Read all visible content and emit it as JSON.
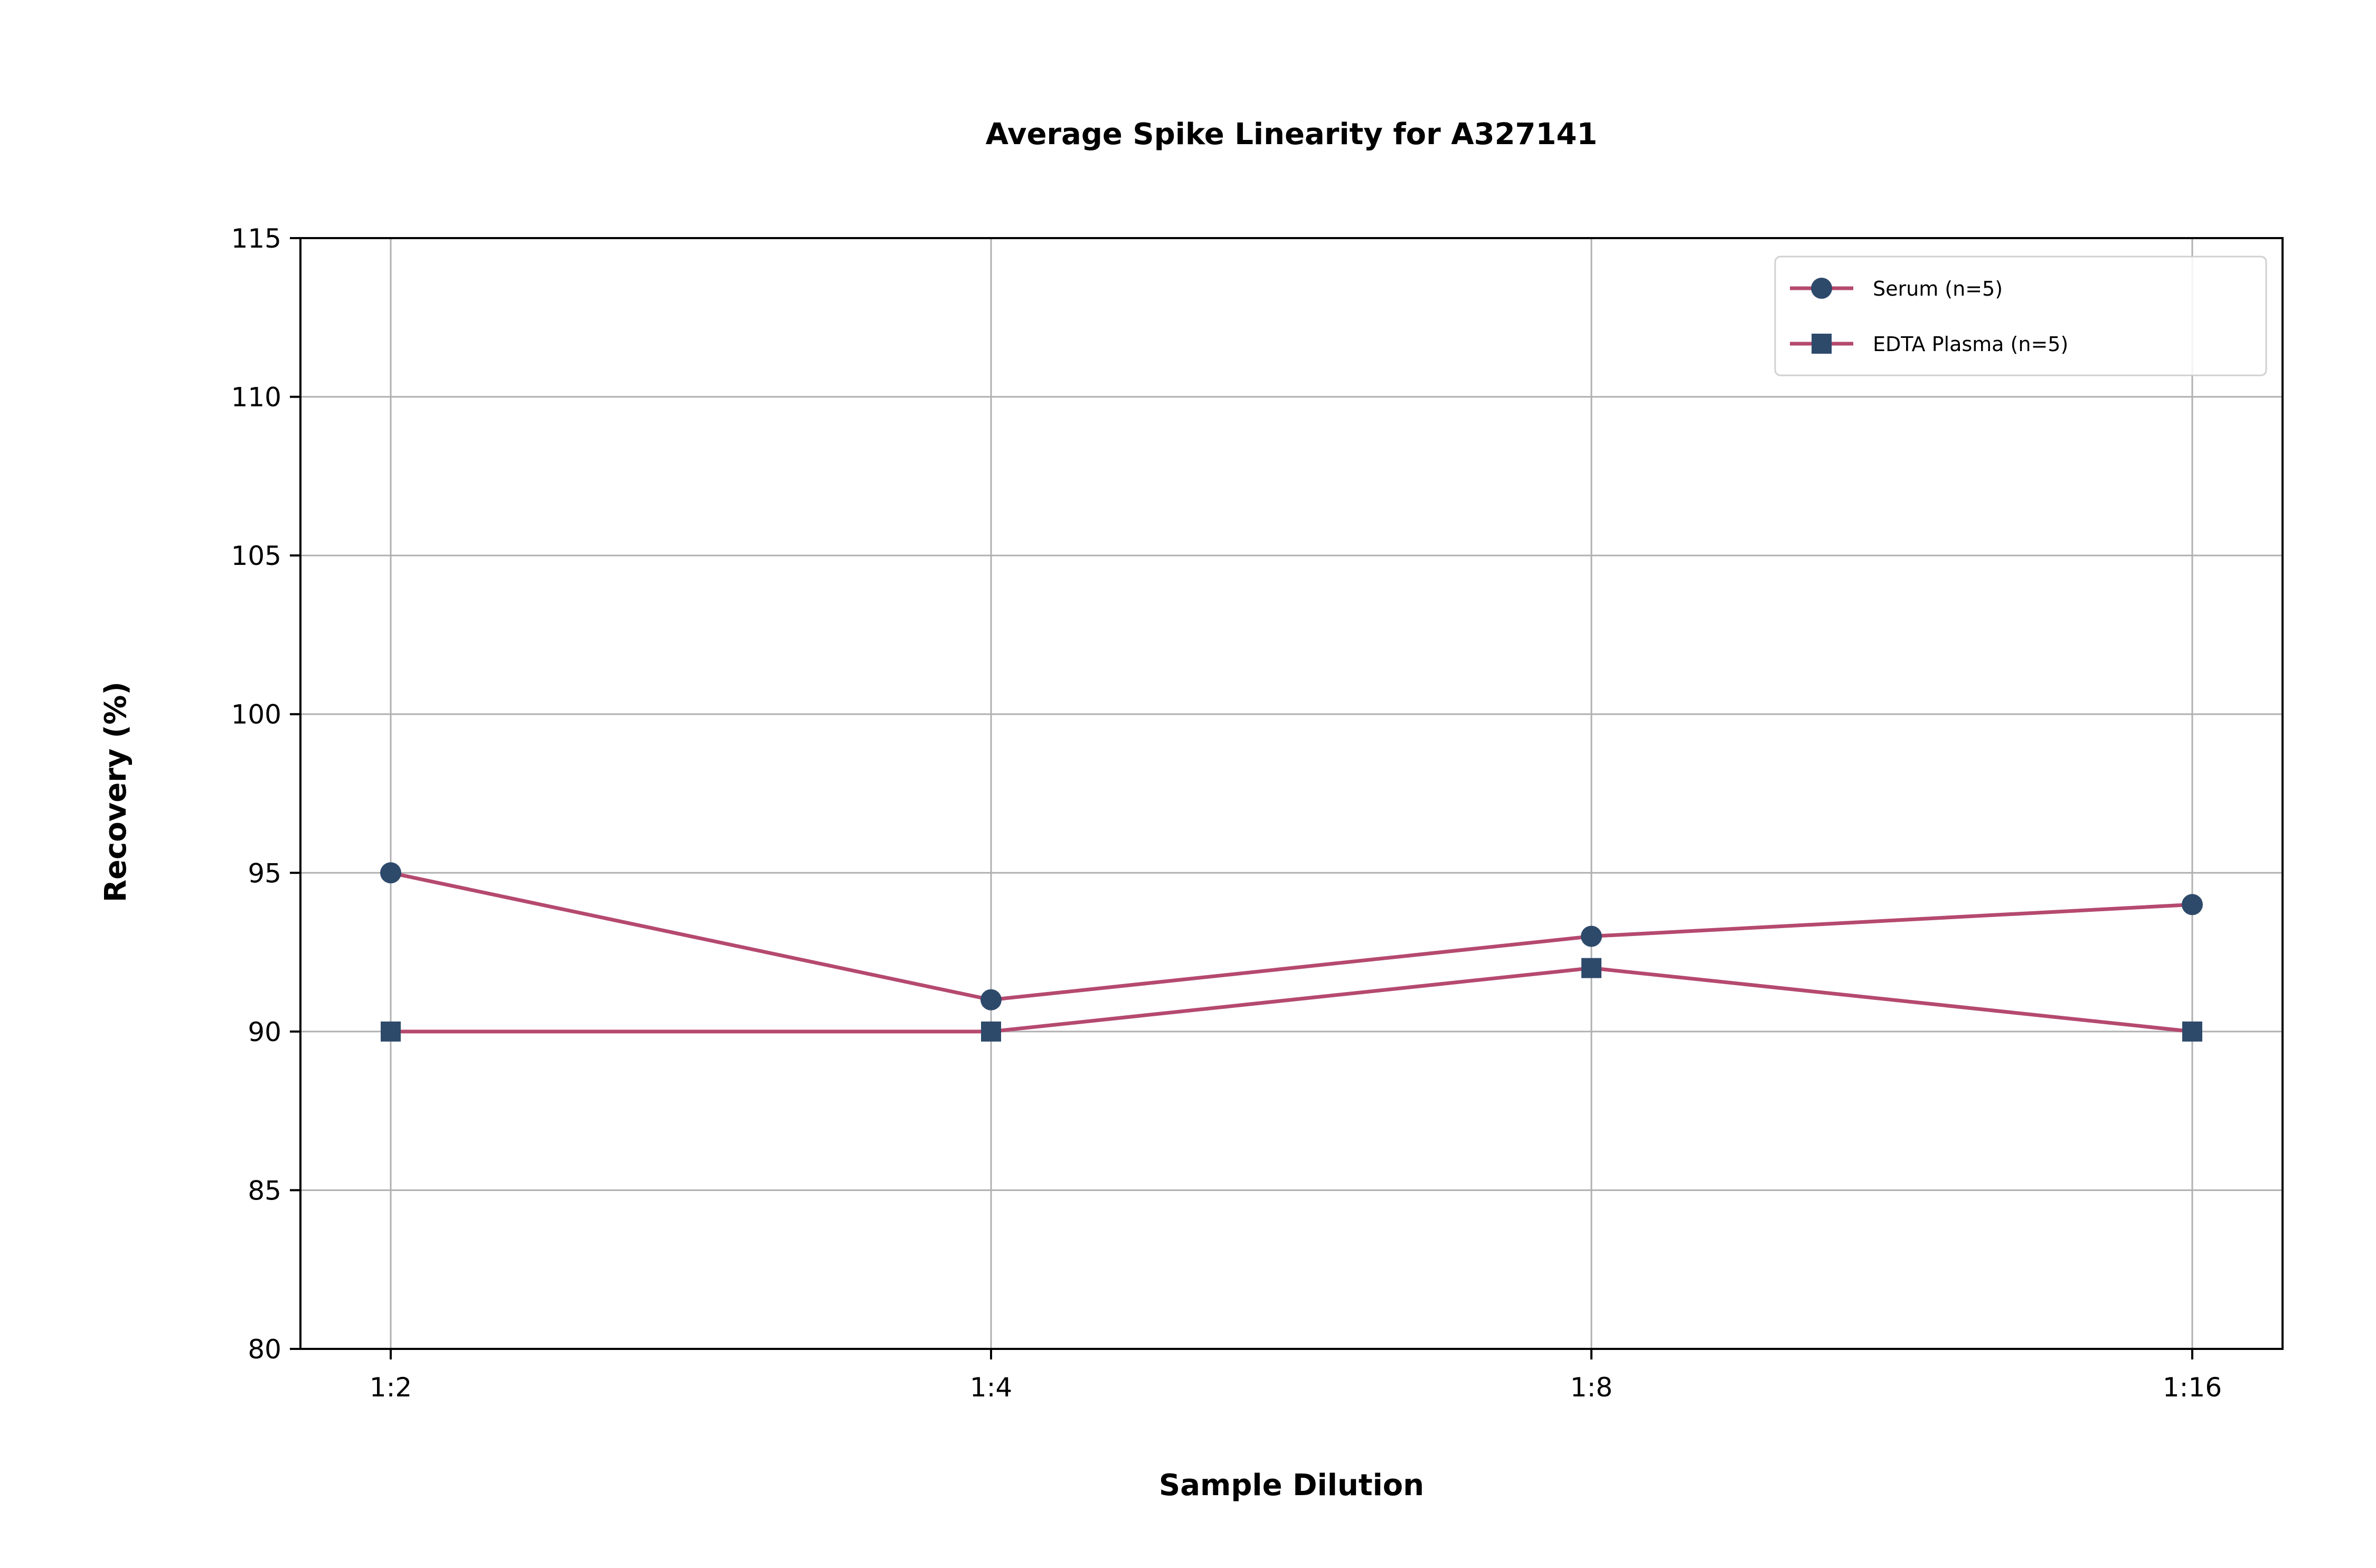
{
  "chart_data": {
    "type": "line",
    "title": "Average Spike Linearity for A327141",
    "xlabel": "Sample Dilution",
    "ylabel": "Recovery (%)",
    "categories": [
      "1:2",
      "1:4",
      "1:8",
      "1:16"
    ],
    "ylim": [
      80,
      115
    ],
    "yticks": [
      80,
      85,
      90,
      95,
      100,
      105,
      110,
      115
    ],
    "grid": true,
    "legend_position": "top-right",
    "line_color": "#b5496f",
    "marker_color": "#2e4a6b",
    "series": [
      {
        "name": "Serum (n=5)",
        "marker": "circle",
        "values": [
          95,
          91,
          93,
          94
        ]
      },
      {
        "name": "EDTA Plasma (n=5)",
        "marker": "square",
        "values": [
          90,
          90,
          92,
          90
        ]
      }
    ]
  }
}
